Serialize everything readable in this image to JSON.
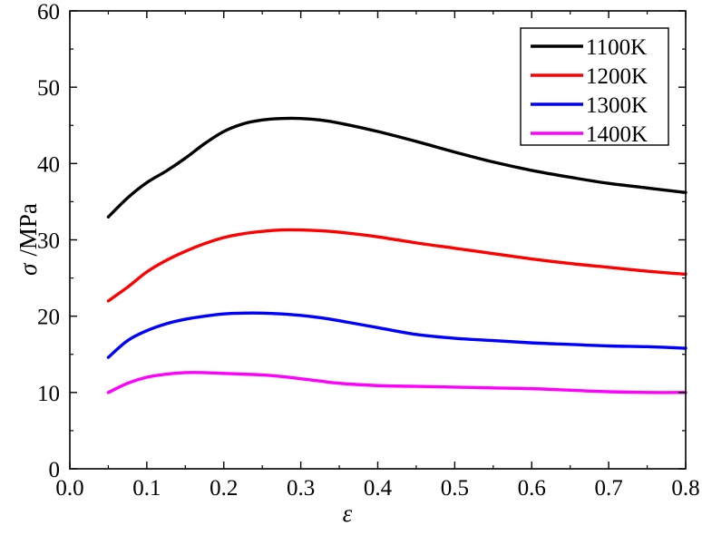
{
  "chart_data": {
    "type": "line",
    "title": "",
    "xlabel": "ε",
    "ylabel": "σ /MPa",
    "ylabel_symbol": "σ",
    "ylabel_unit": "/MPa",
    "xlim": [
      0.0,
      0.8
    ],
    "ylim": [
      0,
      60
    ],
    "xticks": [
      "0.0",
      "0.1",
      "0.2",
      "0.3",
      "0.4",
      "0.5",
      "0.6",
      "0.7",
      "0.8"
    ],
    "yticks": [
      "0",
      "10",
      "20",
      "30",
      "40",
      "50",
      "60"
    ],
    "grid": false,
    "legend_position": "top-right",
    "series": [
      {
        "name": "1100K",
        "color": "#000000",
        "x": [
          0.05,
          0.075,
          0.1,
          0.125,
          0.15,
          0.175,
          0.2,
          0.225,
          0.25,
          0.275,
          0.3,
          0.325,
          0.35,
          0.4,
          0.45,
          0.5,
          0.55,
          0.6,
          0.65,
          0.7,
          0.75,
          0.8
        ],
        "y": [
          33.0,
          35.5,
          37.5,
          39.0,
          40.7,
          42.6,
          44.2,
          45.2,
          45.7,
          45.9,
          45.9,
          45.7,
          45.3,
          44.2,
          42.9,
          41.5,
          40.2,
          39.1,
          38.2,
          37.4,
          36.8,
          36.2
        ]
      },
      {
        "name": "1200K",
        "color": "#ff0000",
        "x": [
          0.05,
          0.075,
          0.1,
          0.125,
          0.15,
          0.175,
          0.2,
          0.225,
          0.25,
          0.275,
          0.3,
          0.325,
          0.35,
          0.4,
          0.45,
          0.5,
          0.55,
          0.6,
          0.65,
          0.7,
          0.75,
          0.8
        ],
        "y": [
          22.0,
          23.8,
          25.8,
          27.3,
          28.5,
          29.5,
          30.3,
          30.8,
          31.1,
          31.3,
          31.3,
          31.2,
          31.0,
          30.4,
          29.6,
          28.9,
          28.2,
          27.5,
          26.9,
          26.4,
          25.9,
          25.5
        ]
      },
      {
        "name": "1300K",
        "color": "#0000ff",
        "x": [
          0.05,
          0.075,
          0.1,
          0.125,
          0.15,
          0.175,
          0.2,
          0.225,
          0.25,
          0.275,
          0.3,
          0.325,
          0.35,
          0.4,
          0.45,
          0.5,
          0.55,
          0.6,
          0.65,
          0.7,
          0.75,
          0.8
        ],
        "y": [
          14.6,
          16.8,
          18.1,
          19.0,
          19.6,
          20.0,
          20.3,
          20.4,
          20.4,
          20.3,
          20.1,
          19.8,
          19.4,
          18.5,
          17.6,
          17.1,
          16.8,
          16.5,
          16.3,
          16.1,
          16.0,
          15.8
        ]
      },
      {
        "name": "1400K",
        "color": "#ff00ff",
        "x": [
          0.05,
          0.075,
          0.1,
          0.125,
          0.15,
          0.175,
          0.2,
          0.225,
          0.25,
          0.275,
          0.3,
          0.325,
          0.35,
          0.4,
          0.45,
          0.5,
          0.55,
          0.6,
          0.65,
          0.7,
          0.75,
          0.8
        ],
        "y": [
          10.0,
          11.2,
          12.0,
          12.4,
          12.6,
          12.6,
          12.5,
          12.4,
          12.3,
          12.1,
          11.8,
          11.5,
          11.2,
          10.9,
          10.8,
          10.7,
          10.6,
          10.5,
          10.3,
          10.1,
          10.0,
          10.0
        ]
      }
    ]
  }
}
